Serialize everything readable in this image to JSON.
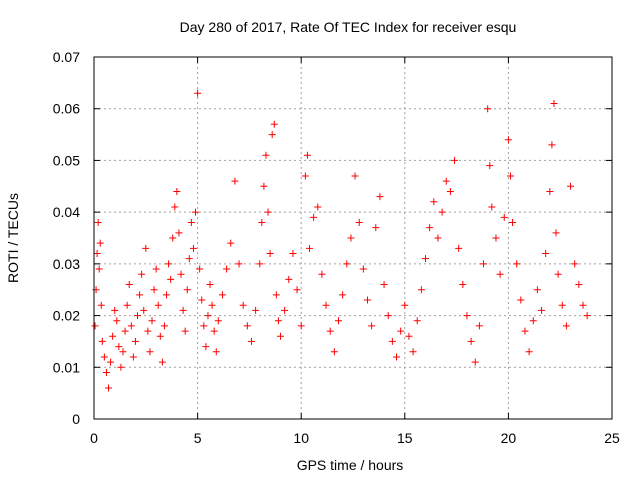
{
  "chart_data": {
    "type": "scatter",
    "title": "Day 280 of 2017, Rate Of TEC Index for receiver esqu",
    "xlabel": "GPS time / hours",
    "ylabel": "ROTI / TECUs",
    "xlim": [
      0,
      25
    ],
    "ylim": [
      0,
      0.07
    ],
    "xticks": [
      "0",
      "5",
      "10",
      "15",
      "20",
      "25"
    ],
    "yticks": [
      "0",
      "0.01",
      "0.02",
      "0.03",
      "0.04",
      "0.05",
      "0.06",
      "0.07"
    ],
    "grid": true,
    "marker": "plus",
    "color": "#ff0000",
    "series": [
      {
        "points": [
          [
            0.05,
            0.018
          ],
          [
            0.1,
            0.025
          ],
          [
            0.15,
            0.032
          ],
          [
            0.2,
            0.038
          ],
          [
            0.25,
            0.029
          ],
          [
            0.3,
            0.034
          ],
          [
            0.35,
            0.022
          ],
          [
            0.4,
            0.015
          ],
          [
            0.5,
            0.012
          ],
          [
            0.6,
            0.009
          ],
          [
            0.7,
            0.006
          ],
          [
            0.8,
            0.011
          ],
          [
            0.9,
            0.016
          ],
          [
            1.0,
            0.021
          ],
          [
            1.1,
            0.019
          ],
          [
            1.2,
            0.014
          ],
          [
            1.3,
            0.01
          ],
          [
            1.4,
            0.013
          ],
          [
            1.5,
            0.017
          ],
          [
            1.6,
            0.022
          ],
          [
            1.7,
            0.026
          ],
          [
            1.8,
            0.018
          ],
          [
            1.9,
            0.012
          ],
          [
            2.0,
            0.015
          ],
          [
            2.1,
            0.02
          ],
          [
            2.2,
            0.024
          ],
          [
            2.3,
            0.028
          ],
          [
            2.4,
            0.021
          ],
          [
            2.5,
            0.033
          ],
          [
            2.6,
            0.017
          ],
          [
            2.7,
            0.013
          ],
          [
            2.8,
            0.019
          ],
          [
            2.9,
            0.025
          ],
          [
            3.0,
            0.029
          ],
          [
            3.1,
            0.022
          ],
          [
            3.2,
            0.016
          ],
          [
            3.3,
            0.011
          ],
          [
            3.4,
            0.018
          ],
          [
            3.5,
            0.024
          ],
          [
            3.6,
            0.03
          ],
          [
            3.7,
            0.027
          ],
          [
            3.8,
            0.035
          ],
          [
            3.9,
            0.041
          ],
          [
            4.0,
            0.044
          ],
          [
            4.1,
            0.036
          ],
          [
            4.2,
            0.028
          ],
          [
            4.3,
            0.021
          ],
          [
            4.4,
            0.017
          ],
          [
            4.5,
            0.025
          ],
          [
            4.6,
            0.031
          ],
          [
            4.7,
            0.038
          ],
          [
            4.8,
            0.033
          ],
          [
            4.9,
            0.04
          ],
          [
            5.0,
            0.063
          ],
          [
            5.1,
            0.029
          ],
          [
            5.2,
            0.023
          ],
          [
            5.3,
            0.018
          ],
          [
            5.4,
            0.014
          ],
          [
            5.5,
            0.02
          ],
          [
            5.6,
            0.026
          ],
          [
            5.7,
            0.022
          ],
          [
            5.8,
            0.017
          ],
          [
            5.9,
            0.013
          ],
          [
            6.0,
            0.019
          ],
          [
            6.2,
            0.024
          ],
          [
            6.4,
            0.029
          ],
          [
            6.6,
            0.034
          ],
          [
            6.8,
            0.046
          ],
          [
            7.0,
            0.03
          ],
          [
            7.2,
            0.022
          ],
          [
            7.4,
            0.018
          ],
          [
            7.6,
            0.015
          ],
          [
            7.8,
            0.021
          ],
          [
            8.0,
            0.03
          ],
          [
            8.1,
            0.038
          ],
          [
            8.2,
            0.045
          ],
          [
            8.3,
            0.051
          ],
          [
            8.4,
            0.04
          ],
          [
            8.5,
            0.032
          ],
          [
            8.6,
            0.055
          ],
          [
            8.7,
            0.057
          ],
          [
            8.8,
            0.024
          ],
          [
            8.9,
            0.019
          ],
          [
            9.0,
            0.016
          ],
          [
            9.2,
            0.021
          ],
          [
            9.4,
            0.027
          ],
          [
            9.6,
            0.032
          ],
          [
            9.8,
            0.025
          ],
          [
            10.0,
            0.018
          ],
          [
            10.2,
            0.047
          ],
          [
            10.3,
            0.051
          ],
          [
            10.4,
            0.033
          ],
          [
            10.6,
            0.039
          ],
          [
            10.8,
            0.041
          ],
          [
            11.0,
            0.028
          ],
          [
            11.2,
            0.022
          ],
          [
            11.4,
            0.017
          ],
          [
            11.6,
            0.013
          ],
          [
            11.8,
            0.019
          ],
          [
            12.0,
            0.024
          ],
          [
            12.2,
            0.03
          ],
          [
            12.4,
            0.035
          ],
          [
            12.6,
            0.047
          ],
          [
            12.8,
            0.038
          ],
          [
            13.0,
            0.029
          ],
          [
            13.2,
            0.023
          ],
          [
            13.4,
            0.018
          ],
          [
            13.6,
            0.037
          ],
          [
            13.8,
            0.043
          ],
          [
            14.0,
            0.026
          ],
          [
            14.2,
            0.02
          ],
          [
            14.4,
            0.015
          ],
          [
            14.6,
            0.012
          ],
          [
            14.8,
            0.017
          ],
          [
            15.0,
            0.022
          ],
          [
            15.2,
            0.016
          ],
          [
            15.4,
            0.013
          ],
          [
            15.6,
            0.019
          ],
          [
            15.8,
            0.025
          ],
          [
            16.0,
            0.031
          ],
          [
            16.2,
            0.037
          ],
          [
            16.4,
            0.042
          ],
          [
            16.6,
            0.035
          ],
          [
            16.8,
            0.04
          ],
          [
            17.0,
            0.046
          ],
          [
            17.2,
            0.044
          ],
          [
            17.4,
            0.05
          ],
          [
            17.6,
            0.033
          ],
          [
            17.8,
            0.026
          ],
          [
            18.0,
            0.02
          ],
          [
            18.2,
            0.015
          ],
          [
            18.4,
            0.011
          ],
          [
            18.6,
            0.018
          ],
          [
            18.8,
            0.03
          ],
          [
            19.0,
            0.06
          ],
          [
            19.1,
            0.049
          ],
          [
            19.2,
            0.041
          ],
          [
            19.4,
            0.035
          ],
          [
            19.6,
            0.028
          ],
          [
            19.8,
            0.039
          ],
          [
            20.0,
            0.054
          ],
          [
            20.1,
            0.047
          ],
          [
            20.2,
            0.038
          ],
          [
            20.4,
            0.03
          ],
          [
            20.6,
            0.023
          ],
          [
            20.8,
            0.017
          ],
          [
            21.0,
            0.013
          ],
          [
            21.2,
            0.019
          ],
          [
            21.4,
            0.025
          ],
          [
            21.6,
            0.021
          ],
          [
            21.8,
            0.032
          ],
          [
            22.0,
            0.044
          ],
          [
            22.1,
            0.053
          ],
          [
            22.2,
            0.061
          ],
          [
            22.3,
            0.036
          ],
          [
            22.4,
            0.028
          ],
          [
            22.6,
            0.022
          ],
          [
            22.8,
            0.018
          ],
          [
            23.0,
            0.045
          ],
          [
            23.2,
            0.03
          ],
          [
            23.4,
            0.026
          ],
          [
            23.6,
            0.022
          ],
          [
            23.8,
            0.02
          ]
        ]
      }
    ]
  }
}
